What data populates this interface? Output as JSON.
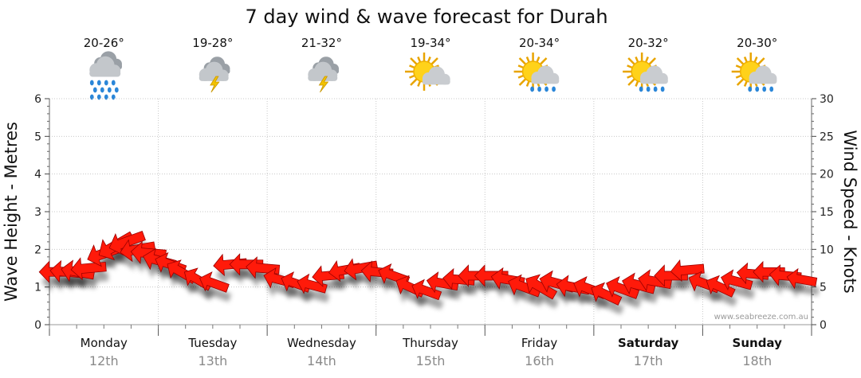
{
  "chart_data": {
    "type": "scatter",
    "title": "7 day wind & wave forecast for Durah",
    "ylabel_left": "Wave Height - Metres",
    "ylabel_right": "Wind Speed - Knots",
    "ylim_left": [
      0,
      6
    ],
    "yticks_left": [
      "0",
      "1",
      "2",
      "3",
      "4",
      "5",
      "6"
    ],
    "ylim_right": [
      0,
      30
    ],
    "yticks_right": [
      "0",
      "5",
      "10",
      "15",
      "20",
      "25",
      "30"
    ],
    "grid": true,
    "watermark": "www.seabreeze.com.au",
    "days": [
      {
        "name": "Monday",
        "date": "12th",
        "temp": "20-26°",
        "weather": "showers-icon",
        "bold": false
      },
      {
        "name": "Tuesday",
        "date": "13th",
        "temp": "19-28°",
        "weather": "storm-icon",
        "bold": false
      },
      {
        "name": "Wednesday",
        "date": "14th",
        "temp": "21-32°",
        "weather": "storm-icon",
        "bold": false
      },
      {
        "name": "Thursday",
        "date": "15th",
        "temp": "19-34°",
        "weather": "sun-cloud-icon",
        "bold": false
      },
      {
        "name": "Friday",
        "date": "16th",
        "temp": "20-34°",
        "weather": "sun-showers-icon",
        "bold": false
      },
      {
        "name": "Saturday",
        "date": "17th",
        "temp": "20-32°",
        "weather": "sun-showers-icon",
        "bold": true
      },
      {
        "name": "Sunday",
        "date": "18th",
        "temp": "20-30°",
        "weather": "sun-showers-icon",
        "bold": true
      }
    ],
    "series": [
      {
        "x": [
          0.0,
          0.1,
          0.2,
          0.3,
          0.45,
          0.55,
          0.65,
          0.75,
          0.85,
          0.95,
          1.05,
          1.15,
          1.3,
          1.45,
          1.6,
          1.75,
          1.9,
          2.05,
          2.2,
          2.35,
          2.5,
          2.65,
          2.8,
          2.95,
          3.1,
          3.25,
          3.4,
          3.55,
          3.7,
          3.85,
          4.0,
          4.15,
          4.3,
          4.45,
          4.6,
          4.75,
          4.9,
          5.05,
          5.2,
          5.35,
          5.5,
          5.65,
          5.8,
          5.95,
          6.1,
          6.25,
          6.4,
          6.55,
          6.7,
          6.85
        ],
        "values": [
          1.4,
          1.4,
          1.4,
          1.5,
          1.9,
          2.1,
          2.2,
          2.0,
          1.9,
          1.7,
          1.6,
          1.4,
          1.2,
          1.1,
          1.6,
          1.6,
          1.5,
          1.2,
          1.1,
          1.05,
          1.3,
          1.45,
          1.5,
          1.4,
          1.3,
          1.0,
          0.9,
          1.1,
          1.2,
          1.3,
          1.3,
          1.2,
          1.0,
          1.0,
          1.1,
          1.0,
          0.95,
          0.8,
          0.95,
          1.05,
          1.15,
          1.3,
          1.45,
          1.1,
          1.0,
          1.15,
          1.35,
          1.4,
          1.3,
          1.2
        ],
        "wind_knots": [
          8,
          8,
          8,
          9,
          10,
          11,
          10,
          9,
          9,
          8,
          7,
          7,
          6,
          6,
          8,
          8,
          8,
          7,
          6,
          6,
          7,
          7,
          8,
          7,
          7,
          6,
          6,
          7,
          7,
          8,
          8,
          8,
          8,
          8,
          9,
          8,
          8,
          7,
          8,
          8,
          8,
          8,
          8,
          7,
          6,
          7,
          7,
          7,
          7,
          6
        ],
        "direction_deg": [
          180,
          185,
          190,
          175,
          160,
          150,
          160,
          170,
          185,
          195,
          200,
          210,
          210,
          200,
          175,
          180,
          185,
          195,
          200,
          195,
          175,
          170,
          170,
          185,
          200,
          205,
          200,
          190,
          185,
          180,
          180,
          190,
          200,
          210,
          195,
          190,
          200,
          205,
          200,
          195,
          190,
          180,
          175,
          200,
          205,
          195,
          185,
          180,
          185,
          190
        ]
      }
    ]
  }
}
